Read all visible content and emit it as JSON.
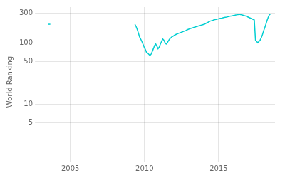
{
  "chart_data": {
    "type": "line",
    "ylabel": "World Ranking",
    "series": [
      {
        "color": "#00CED1",
        "x": [
          2003.5,
          2003.65
        ],
        "values": [
          200,
          200
        ]
      },
      {
        "color": "#00CED1",
        "x": [
          2009.35,
          2009.4282,
          2009.5064,
          2009.5846,
          2009.6628,
          2009.741,
          2009.8192,
          2009.8974,
          2009.9756,
          2010.0538,
          2010.1321,
          2010.2103,
          2010.2885,
          2010.3667,
          2010.4449,
          2010.5231,
          2010.6013,
          2010.6795,
          2010.7577,
          2010.8359,
          2010.9141,
          2010.9923,
          2011.0705,
          2011.1487,
          2011.2269,
          2011.3051,
          2011.3833,
          2011.4615,
          2011.5397,
          2011.6179,
          2011.6962,
          2011.7744,
          2011.8526,
          2011.9308,
          2012.009,
          2012.0872,
          2012.1654,
          2012.2436,
          2012.3218,
          2012.4,
          2012.4782,
          2012.5564,
          2012.6346,
          2012.7128,
          2012.791,
          2012.8692,
          2012.9474,
          2013.0256,
          2013.1038,
          2013.1821,
          2013.2603,
          2013.3385,
          2013.4167,
          2013.4949,
          2013.5731,
          2013.6513,
          2013.7295,
          2013.8077,
          2013.8859,
          2013.9641,
          2014.0423,
          2014.1205,
          2014.1987,
          2014.2769,
          2014.3551,
          2014.4333,
          2014.5115,
          2014.5897,
          2014.6679,
          2014.7462,
          2014.8244,
          2014.9026,
          2014.9808,
          2015.059,
          2015.1372,
          2015.2154,
          2015.2936,
          2015.3718,
          2015.45,
          2015.5282,
          2015.6064,
          2015.6846,
          2015.7628,
          2015.841,
          2015.9192,
          2015.9974,
          2016.0756,
          2016.1538,
          2016.2321,
          2016.3103,
          2016.3885,
          2016.4667,
          2016.5449,
          2016.6231,
          2016.7013,
          2016.7795,
          2016.8577,
          2016.9359,
          2017.0141,
          2017.0923,
          2017.1705,
          2017.2487,
          2017.3269,
          2017.4051,
          2017.4833,
          2017.5615,
          2017.6397,
          2017.7179,
          2017.7962,
          2017.8744,
          2017.9526,
          2018.0308,
          2018.109,
          2018.1872,
          2018.2654,
          2018.3436,
          2018.4218,
          2018.5
        ],
        "values": [
          200,
          185,
          165,
          145,
          125,
          115,
          105,
          95,
          85,
          78,
          70,
          68,
          65,
          62,
          65,
          72,
          80,
          90,
          95,
          88,
          80,
          85,
          95,
          105,
          115,
          110,
          100,
          95,
          100,
          108,
          115,
          120,
          125,
          128,
          132,
          135,
          138,
          140,
          143,
          145,
          148,
          150,
          153,
          155,
          158,
          162,
          165,
          168,
          170,
          173,
          175,
          178,
          180,
          183,
          185,
          188,
          190,
          193,
          195,
          198,
          200,
          205,
          210,
          215,
          220,
          225,
          228,
          230,
          235,
          238,
          240,
          243,
          245,
          248,
          250,
          252,
          255,
          258,
          260,
          262,
          265,
          268,
          270,
          273,
          275,
          278,
          280,
          283,
          285,
          288,
          290,
          288,
          285,
          282,
          278,
          275,
          270,
          265,
          260,
          255,
          250,
          245,
          240,
          235,
          110,
          105,
          100,
          105,
          110,
          120,
          135,
          155,
          175,
          200,
          230,
          260,
          285,
          295
        ]
      }
    ],
    "xlim": [
      2003.0,
      2018.8
    ],
    "xticks": [
      2005,
      2010,
      2015
    ],
    "ylim": [
      1.4,
      380
    ],
    "yticks": [
      5,
      10,
      50,
      100,
      300
    ],
    "log": "y",
    "grid": true
  }
}
